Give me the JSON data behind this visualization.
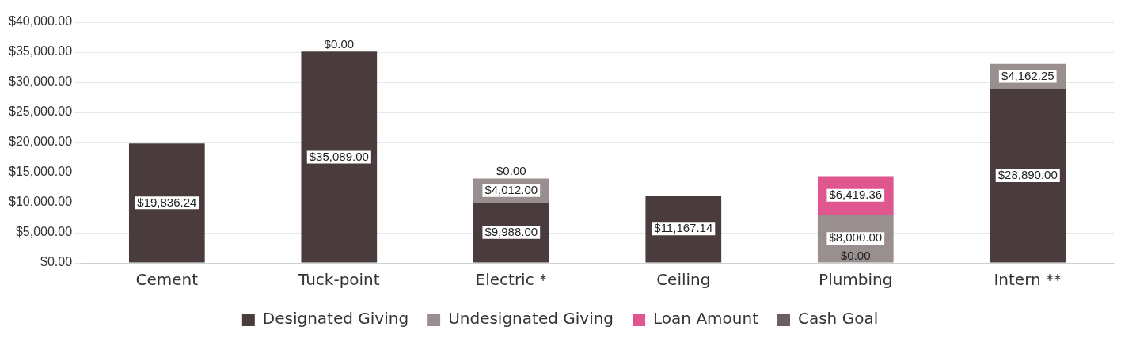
{
  "chart_data": {
    "type": "bar",
    "stacked": true,
    "categories": [
      "Cement",
      "Tuck-point",
      "Electric *",
      "Ceiling",
      "Plumbing",
      "Intern **"
    ],
    "series": [
      {
        "name": "Designated Giving",
        "color": "#4a3c3c",
        "values": [
          19836.24,
          35089,
          9988,
          11167.14,
          null,
          28890
        ],
        "value_labels": [
          "$19,836.24",
          "$35,089.00",
          "$9,988.00",
          "$11,167.14",
          null,
          "$28,890.00"
        ]
      },
      {
        "name": "Undesignated Giving",
        "color": "#9a8f8f",
        "values": [
          null,
          null,
          4012,
          null,
          8000,
          4162.25
        ],
        "value_labels": [
          null,
          null,
          "$4,012.00",
          null,
          "$8,000.00",
          "$4,162.25"
        ]
      },
      {
        "name": "Loan Amount",
        "color": "#e0578f",
        "values": [
          null,
          null,
          null,
          null,
          6419.36,
          null
        ],
        "value_labels": [
          null,
          null,
          null,
          null,
          "$6,419.36",
          null
        ]
      },
      {
        "name": "Cash Goal",
        "color": "#6a5e5e",
        "values": [
          null,
          null,
          null,
          null,
          null,
          null
        ]
      }
    ],
    "annotations": [
      {
        "text": "$0.00",
        "x": "Tuck-point",
        "y": 35089
      },
      {
        "text": "$0.00",
        "x": "Electric *",
        "y": 14000
      },
      {
        "text": "$0.00",
        "x": "Plumbing",
        "y": 0
      }
    ],
    "ylim": [
      0,
      40000
    ],
    "yticks": [
      {
        "value": 0,
        "label": "$0.00"
      },
      {
        "value": 5000,
        "label": "$5,000.00"
      },
      {
        "value": 10000,
        "label": "$10,000.00"
      },
      {
        "value": 15000,
        "label": "$15,000.00"
      },
      {
        "value": 20000,
        "label": "$20,000.00"
      },
      {
        "value": 25000,
        "label": "$25,000.00"
      },
      {
        "value": 30000,
        "label": "$30,000.00"
      },
      {
        "value": 35000,
        "label": "$35,000.00"
      },
      {
        "value": 40000,
        "label": "$40,000.00"
      }
    ],
    "grid": "y",
    "legend": "bottom"
  }
}
